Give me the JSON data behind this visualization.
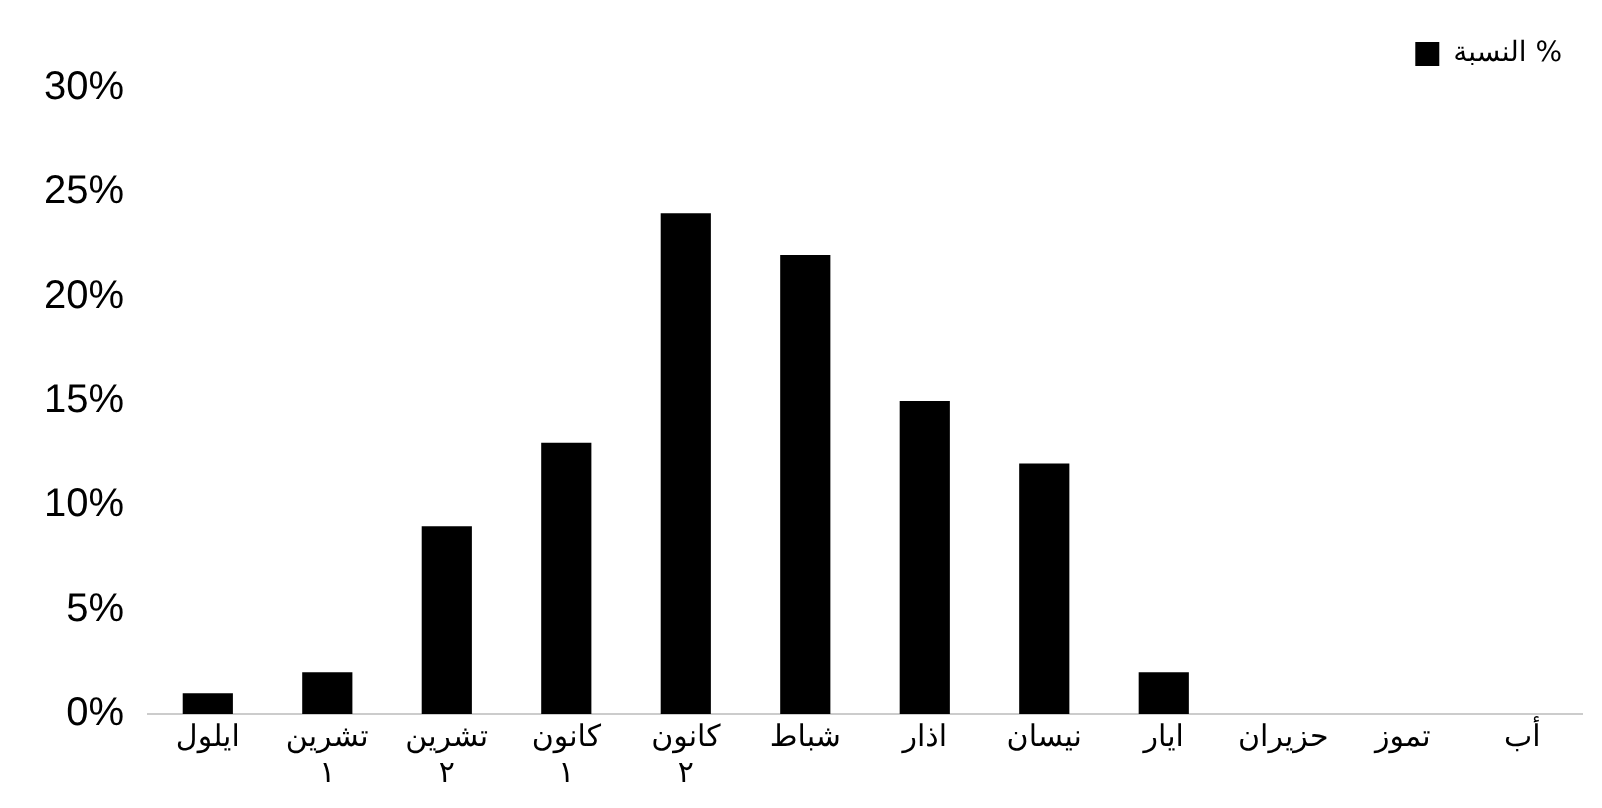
{
  "chart_data": {
    "type": "bar",
    "categories": [
      "ايلول",
      "تشرين ١",
      "تشرين ٢",
      "كانون ١",
      "كانون ٢",
      "شباط",
      "اذار",
      "نيسان",
      "ايار",
      "حزيران",
      "تموز",
      "أب"
    ],
    "series": [
      {
        "name": "النسبة %",
        "color": "#000000",
        "values": [
          1,
          2,
          9,
          13,
          24,
          22,
          15,
          12,
          2,
          0,
          0,
          0
        ]
      }
    ],
    "ylim": [
      0,
      30
    ],
    "yticks": [
      {
        "value": 0,
        "label": "0%"
      },
      {
        "value": 5,
        "label": "5%"
      },
      {
        "value": 10,
        "label": "10%"
      },
      {
        "value": 15,
        "label": "15%"
      },
      {
        "value": 20,
        "label": "20%"
      },
      {
        "value": 25,
        "label": "25%"
      },
      {
        "value": 30,
        "label": "30%"
      }
    ],
    "grid": false,
    "legend": "top right"
  }
}
